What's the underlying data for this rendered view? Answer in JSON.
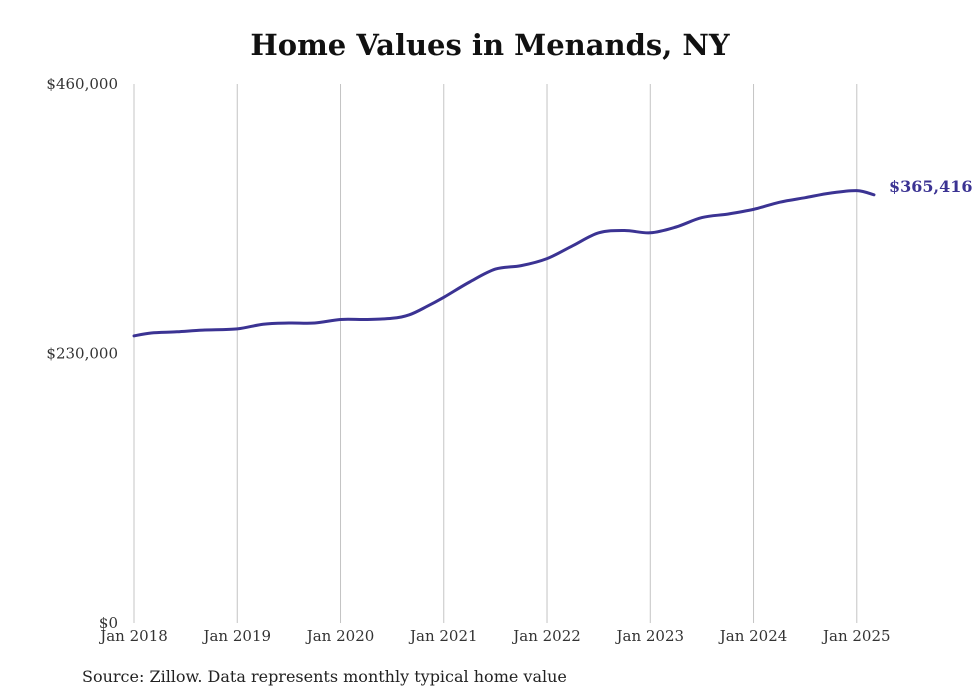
{
  "chart_data": {
    "type": "line",
    "title": "Home Values in Menands, NY",
    "source": "Source: Zillow. Data represents monthly typical home value",
    "y_ticks": [
      {
        "value": 460000,
        "label": "$460,000"
      },
      {
        "value": 230000,
        "label": "$230,000"
      },
      {
        "value": 0,
        "label": "$0"
      }
    ],
    "ylim": [
      0,
      460000
    ],
    "xlim": [
      "2018-01",
      "2025-03"
    ],
    "x_ticks": [
      {
        "date": "2018-01",
        "label": "Jan 2018"
      },
      {
        "date": "2019-01",
        "label": "Jan 2019"
      },
      {
        "date": "2020-01",
        "label": "Jan 2020"
      },
      {
        "date": "2021-01",
        "label": "Jan 2021"
      },
      {
        "date": "2022-01",
        "label": "Jan 2022"
      },
      {
        "date": "2023-01",
        "label": "Jan 2023"
      },
      {
        "date": "2024-01",
        "label": "Jan 2024"
      },
      {
        "date": "2025-01",
        "label": "Jan 2025"
      }
    ],
    "grid": {
      "vertical": true,
      "horizontal": false
    },
    "line_color": "#3b3393",
    "series": [
      {
        "points": [
          {
            "date": "2018-01",
            "value": 245000
          },
          {
            "date": "2018-03",
            "value": 247500
          },
          {
            "date": "2018-06",
            "value": 248500
          },
          {
            "date": "2018-09",
            "value": 250000
          },
          {
            "date": "2019-01",
            "value": 251000
          },
          {
            "date": "2019-04",
            "value": 255000
          },
          {
            "date": "2019-07",
            "value": 256000
          },
          {
            "date": "2019-10",
            "value": 256000
          },
          {
            "date": "2020-01",
            "value": 259000
          },
          {
            "date": "2020-04",
            "value": 259000
          },
          {
            "date": "2020-07",
            "value": 260000
          },
          {
            "date": "2020-09",
            "value": 263000
          },
          {
            "date": "2020-11",
            "value": 270000
          },
          {
            "date": "2021-01",
            "value": 278000
          },
          {
            "date": "2021-04",
            "value": 291000
          },
          {
            "date": "2021-07",
            "value": 302000
          },
          {
            "date": "2021-10",
            "value": 305000
          },
          {
            "date": "2022-01",
            "value": 311000
          },
          {
            "date": "2022-04",
            "value": 322000
          },
          {
            "date": "2022-07",
            "value": 333000
          },
          {
            "date": "2022-10",
            "value": 335000
          },
          {
            "date": "2023-01",
            "value": 333000
          },
          {
            "date": "2023-04",
            "value": 338000
          },
          {
            "date": "2023-07",
            "value": 346000
          },
          {
            "date": "2023-10",
            "value": 349000
          },
          {
            "date": "2024-01",
            "value": 353000
          },
          {
            "date": "2024-04",
            "value": 359000
          },
          {
            "date": "2024-07",
            "value": 363000
          },
          {
            "date": "2024-10",
            "value": 367000
          },
          {
            "date": "2025-01",
            "value": 369000
          },
          {
            "date": "2025-03",
            "value": 365416
          }
        ]
      }
    ],
    "end_label": "$365,416"
  }
}
